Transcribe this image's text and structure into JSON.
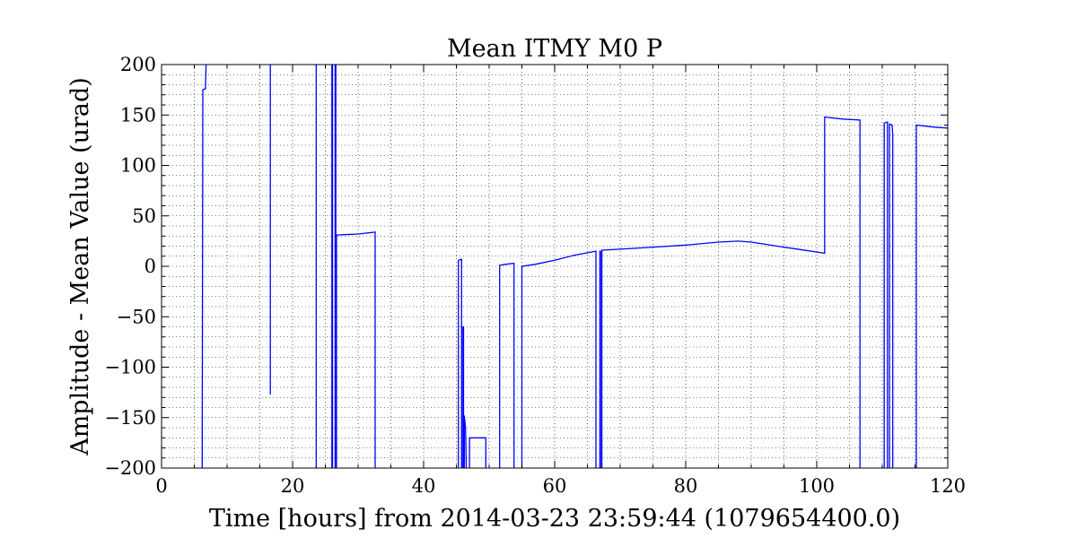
{
  "chart_data": {
    "type": "line",
    "title": "Mean ITMY M0 P",
    "xlabel": "Time [hours] from 2014-03-23 23:59:44 (1079654400.0)",
    "ylabel": "Amplitude - Mean Value (urad)",
    "xlim": [
      0,
      120
    ],
    "ylim": [
      -200,
      200
    ],
    "xticks": [
      0,
      20,
      40,
      60,
      80,
      100,
      120
    ],
    "xtick_labels": [
      "0",
      "20",
      "40",
      "60",
      "80",
      "100",
      "120"
    ],
    "yticks": [
      -200,
      -150,
      -100,
      -50,
      0,
      50,
      100,
      150,
      200
    ],
    "ytick_labels": [
      "−200",
      "−150",
      "−100",
      "−50",
      "0",
      "50",
      "100",
      "150",
      "200"
    ],
    "grid": true,
    "grid_minor": true,
    "line_color": "#0000ff",
    "series": [
      {
        "segments": [
          [
            [
              6.2,
              -200
            ],
            [
              6.3,
              175
            ],
            [
              6.7,
              176
            ],
            [
              6.8,
              200
            ]
          ],
          [
            [
              16.6,
              200
            ],
            [
              16.6,
              -127
            ]
          ],
          [
            [
              23.6,
              200
            ],
            [
              23.6,
              -200
            ]
          ],
          [
            [
              26.0,
              -200
            ],
            [
              26.0,
              200
            ],
            [
              26.1,
              200
            ],
            [
              26.1,
              -200
            ]
          ],
          [
            [
              26.5,
              -200
            ],
            [
              26.5,
              200
            ],
            [
              26.6,
              200
            ],
            [
              26.6,
              -200
            ]
          ],
          [
            [
              26.7,
              -200
            ],
            [
              26.7,
              31
            ],
            [
              30,
              32
            ],
            [
              32.6,
              34
            ],
            [
              32.6,
              -200
            ]
          ],
          [
            [
              45.3,
              -200
            ],
            [
              45.3,
              6
            ],
            [
              45.8,
              7
            ],
            [
              45.8,
              -200
            ]
          ],
          [
            [
              46.0,
              -200
            ],
            [
              46.0,
              -60
            ],
            [
              46.1,
              -60
            ],
            [
              46.1,
              -200
            ]
          ],
          [
            [
              46.2,
              -200
            ],
            [
              46.2,
              -148
            ],
            [
              46.4,
              -160
            ],
            [
              46.5,
              -200
            ]
          ],
          [
            [
              47.0,
              -200
            ],
            [
              47.0,
              -170
            ],
            [
              49.5,
              -170
            ],
            [
              49.5,
              -200
            ]
          ],
          [
            [
              51.6,
              -200
            ],
            [
              51.6,
              1
            ],
            [
              52.5,
              2
            ],
            [
              53.8,
              3
            ],
            [
              53.8,
              -200
            ]
          ],
          [
            [
              55.0,
              -200
            ],
            [
              55.0,
              0
            ],
            [
              57,
              2
            ],
            [
              60,
              6
            ],
            [
              63,
              11
            ],
            [
              66.3,
              15
            ],
            [
              66.3,
              -200
            ]
          ],
          [
            [
              66.9,
              -200
            ],
            [
              66.9,
              15
            ],
            [
              67.0,
              15
            ],
            [
              67.0,
              -200
            ]
          ],
          [
            [
              67.2,
              -200
            ],
            [
              67.2,
              16
            ],
            [
              70,
              17
            ],
            [
              75,
              19
            ],
            [
              80,
              21
            ],
            [
              85,
              24
            ],
            [
              88,
              25
            ],
            [
              90,
              24
            ],
            [
              95,
              19
            ],
            [
              101.2,
              13
            ],
            [
              101.2,
              148
            ],
            [
              104,
              146
            ],
            [
              106.6,
              145
            ],
            [
              106.6,
              -200
            ]
          ],
          [
            [
              110.3,
              -200
            ],
            [
              110.3,
              142
            ],
            [
              110.8,
              143
            ],
            [
              110.8,
              -200
            ]
          ],
          [
            [
              111.1,
              -200
            ],
            [
              111.1,
              141
            ],
            [
              111.5,
              140
            ],
            [
              111.6,
              130
            ],
            [
              111.6,
              -200
            ]
          ],
          [
            [
              115.2,
              -200
            ],
            [
              115.2,
              140
            ],
            [
              118,
              138
            ],
            [
              120,
              137
            ]
          ]
        ]
      }
    ]
  }
}
